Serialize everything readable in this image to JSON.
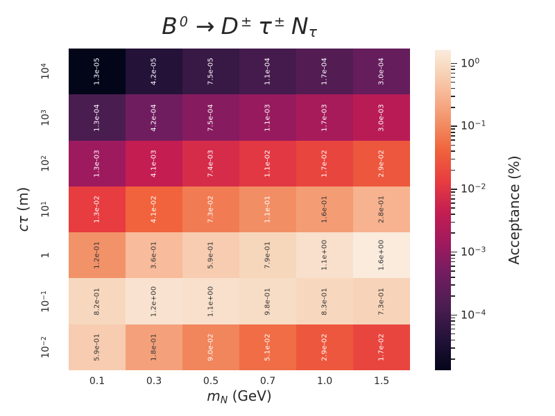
{
  "background": "#ffffff",
  "text_color": "#262626",
  "chart_data": {
    "type": "heatmap",
    "title": "B⁰ → D± τ± Nτ",
    "title_parts": {
      "B": "B",
      "B_sup": "0",
      "arrow": "→",
      "D": "D",
      "D_sup": "±",
      "tau": "τ",
      "tau_sup": "±",
      "N": "N",
      "N_sub": "τ"
    },
    "xlabel": "mN (GeV)",
    "xlabel_parts": {
      "math": "m",
      "sub": "N",
      "unit": " (GeV)"
    },
    "ylabel": "cτ (m)",
    "ylabel_parts": {
      "math": "cτ",
      "unit": " (m)"
    },
    "x_categories": [
      "0.1",
      "0.3",
      "0.5",
      "0.7",
      "1.0",
      "1.5"
    ],
    "y_categories": [
      "10⁴",
      "10³",
      "10²",
      "10¹",
      "1",
      "10⁻¹",
      "10⁻²"
    ],
    "y_categories_parts": [
      {
        "base": "10",
        "exp": "4"
      },
      {
        "base": "10",
        "exp": "3"
      },
      {
        "base": "10",
        "exp": "2"
      },
      {
        "base": "10",
        "exp": "1"
      },
      {
        "base": "1",
        "exp": ""
      },
      {
        "base": "10",
        "exp": "−1"
      },
      {
        "base": "10",
        "exp": "−2"
      }
    ],
    "values": [
      [
        1.3e-05,
        4.2e-05,
        7.5e-05,
        0.00011,
        0.00017,
        0.0003
      ],
      [
        0.00013,
        0.00042,
        0.00075,
        0.0011,
        0.0017,
        0.003
      ],
      [
        0.0013,
        0.0041,
        0.0074,
        0.011,
        0.017,
        0.029
      ],
      [
        0.013,
        0.041,
        0.073,
        0.11,
        0.16,
        0.28
      ],
      [
        0.12,
        0.36,
        0.59,
        0.79,
        1.1,
        1.6
      ],
      [
        0.82,
        1.2,
        1.1,
        0.98,
        0.83,
        0.73
      ],
      [
        0.59,
        0.18,
        0.09,
        0.051,
        0.029,
        0.017
      ]
    ],
    "cell_labels": [
      [
        "1.3e-05",
        "4.2e-05",
        "7.5e-05",
        "1.1e-04",
        "1.7e-04",
        "3.0e-04"
      ],
      [
        "1.3e-04",
        "4.2e-04",
        "7.5e-04",
        "1.1e-03",
        "1.7e-03",
        "3.0e-03"
      ],
      [
        "1.3e-03",
        "4.1e-03",
        "7.4e-03",
        "1.1e-02",
        "1.7e-02",
        "2.9e-02"
      ],
      [
        "1.3e-02",
        "4.1e-02",
        "7.3e-02",
        "1.1e-01",
        "1.6e-01",
        "2.8e-01"
      ],
      [
        "1.2e-01",
        "3.6e-01",
        "5.9e-01",
        "7.9e-01",
        "1.1e+00",
        "1.6e+00"
      ],
      [
        "8.2e-01",
        "1.2e+00",
        "1.1e+00",
        "9.8e-01",
        "8.3e-01",
        "7.3e-01"
      ],
      [
        "5.9e-01",
        "1.8e-01",
        "9.0e-02",
        "5.1e-02",
        "2.9e-02",
        "1.7e-02"
      ]
    ],
    "scale": {
      "type": "log",
      "vmin": 1.3e-05,
      "vmax": 1.6
    },
    "colorbar": {
      "label": "Acceptance (%)",
      "tick_values": [
        1,
        0.1,
        0.01,
        0.001,
        0.0001
      ],
      "tick_labels": [
        "10⁰",
        "10⁻¹",
        "10⁻²",
        "10⁻³",
        "10⁻⁴"
      ],
      "tick_labels_parts": [
        {
          "base": "10",
          "exp": "0"
        },
        {
          "base": "10",
          "exp": "−1"
        },
        {
          "base": "10",
          "exp": "−2"
        },
        {
          "base": "10",
          "exp": "−3"
        },
        {
          "base": "10",
          "exp": "−4"
        }
      ],
      "minor_tick_multiples": [
        2,
        3,
        4,
        5,
        6,
        7,
        8,
        9
      ],
      "position": "right"
    },
    "colormap": {
      "name": "rocket",
      "anchors": [
        [
          0.0,
          "#030519"
        ],
        [
          0.098,
          "#231239"
        ],
        [
          0.196,
          "#4A1D50"
        ],
        [
          0.295,
          "#6F1D60"
        ],
        [
          0.393,
          "#9E1A5E"
        ],
        [
          0.491,
          "#C31D52"
        ],
        [
          0.589,
          "#E73C40"
        ],
        [
          0.687,
          "#F0633C"
        ],
        [
          0.779,
          "#F29268"
        ],
        [
          0.875,
          "#F8BC9C"
        ],
        [
          0.943,
          "#F7D8BE"
        ],
        [
          1.0,
          "#FAEBDD"
        ]
      ]
    },
    "cell_text_colors": {
      "light": "#ffffff",
      "dark": "#333333"
    },
    "luminance_threshold": 0.398,
    "grid": false,
    "legend_position": "colorbar-right"
  }
}
